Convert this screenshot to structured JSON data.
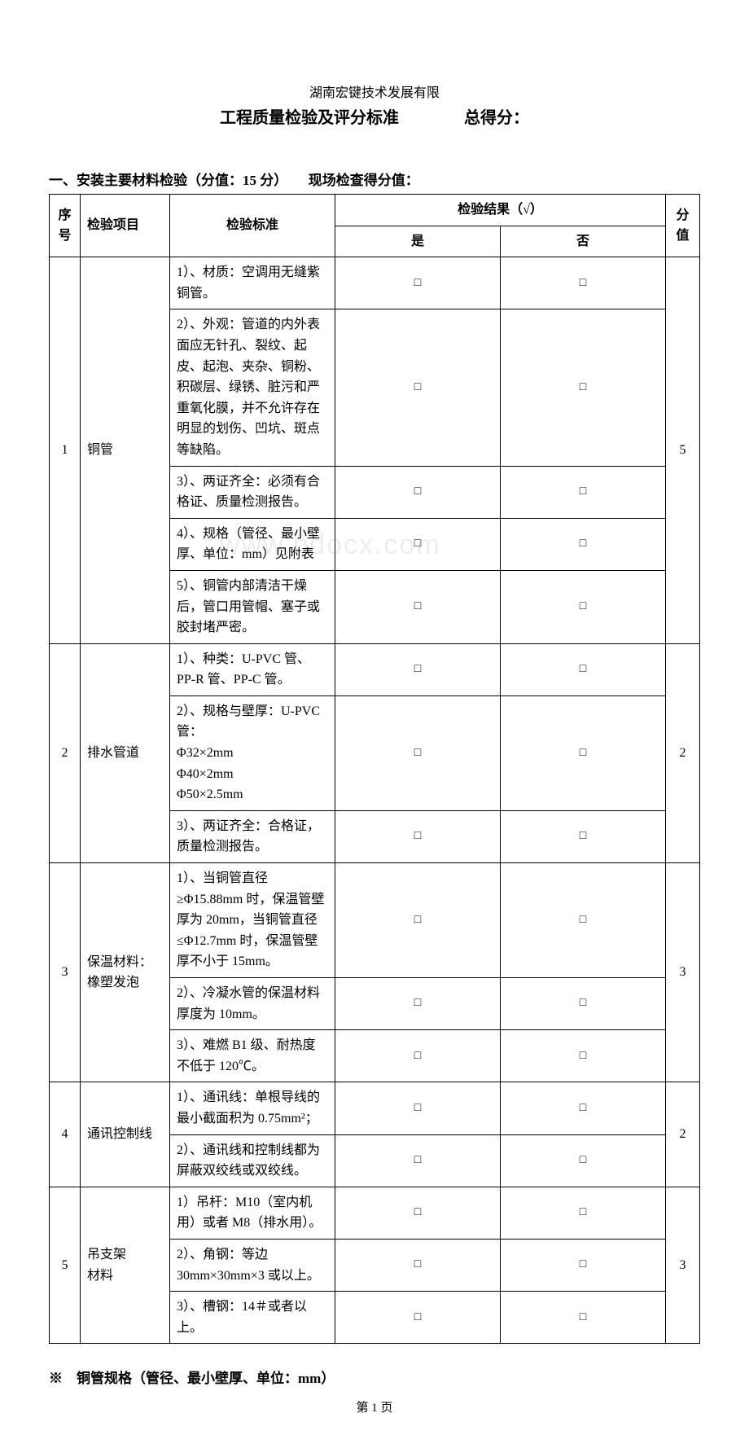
{
  "header": {
    "company": "湖南宏键技术发展有限",
    "title": "工程质量检验及评分标准",
    "total_label": "总得分："
  },
  "section1": {
    "heading": "一、安装主要材料检验（分值：15 分）　　现场检查得分值："
  },
  "table": {
    "head": {
      "seq": "序号",
      "item": "检验项目",
      "standard": "检验标准",
      "result": "检验结果（√）",
      "yes": "是",
      "no": "否",
      "score": "分值"
    },
    "groups": [
      {
        "seq": "1",
        "item": "铜管",
        "score": "5",
        "rows": [
          "1）、材质：空调用无缝紫铜管。",
          "2）、外观：管道的内外表面应无针孔、裂纹、起皮、起泡、夹杂、铜粉、积碳层、绿锈、脏污和严重氧化膜，并不允许存在明显的划伤、凹坑、斑点等缺陷。",
          "3）、两证齐全：必须有合格证、质量检测报告。",
          "4）、规格（管径、最小壁厚、单位：mm）见附表",
          "5）、铜管内部清洁干燥后，管口用管帽、塞子或胶封堵严密。"
        ]
      },
      {
        "seq": "2",
        "item": "排水管道",
        "score": "2",
        "rows": [
          "1）、种类：U-PVC 管、PP-R 管、PP-C 管。",
          "2）、规格与壁厚：U-PVC 管：\nΦ32×2mm　　　Φ40×2mm　　　Φ50×2.5mm",
          "3）、两证齐全：合格证，质量检测报告。"
        ]
      },
      {
        "seq": "3",
        "item": "保温材料：橡塑发泡",
        "score": "3",
        "rows": [
          "1）、当铜管直径≥Φ15.88mm 时，保温管壁厚为 20mm，当铜管直径≤Φ12.7mm 时，保温管壁厚不小于 15mm。",
          "2）、冷凝水管的保温材料厚度为 10mm。",
          "3）、难燃 B1 级、耐热度不低于 120℃。"
        ]
      },
      {
        "seq": "4",
        "item": "通讯控制线",
        "score": "2",
        "rows": [
          "1）、通讯线：单根导线的最小截面积为 0.75mm²；",
          "2）、通讯线和控制线都为屏蔽双绞线或双绞线。"
        ]
      },
      {
        "seq": "5",
        "item": "吊支架\n材料",
        "score": "3",
        "rows": [
          "1）吊杆：M10（室内机用）或者 M8（排水用）。",
          "2）、角钢：等边 30mm×30mm×3 或以上。",
          "3）、槽钢：14＃或者以上。"
        ]
      }
    ]
  },
  "appendix": {
    "title": "※　铜管规格（管径、最小壁厚、单位：mm）"
  },
  "footer": {
    "page": "第 1 页"
  },
  "checkbox_glyph": "□",
  "watermark": "www.bdocx.com"
}
